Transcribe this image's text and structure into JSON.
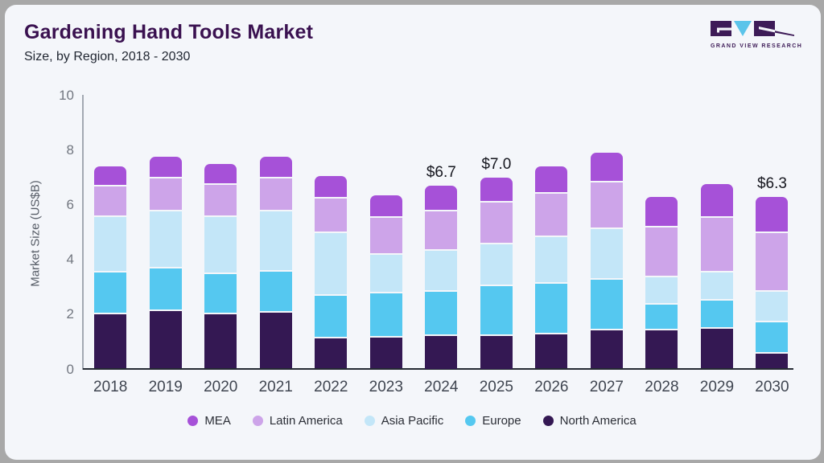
{
  "header": {
    "title": "Gardening Hand Tools Market",
    "subtitle": "Size, by Region, 2018 - 2030"
  },
  "logo": {
    "brand": "GRAND VIEW RESEARCH",
    "mark_dark_color": "#3d1b57",
    "mark_blue_color": "#5bc4ea"
  },
  "chart_data": {
    "type": "bar",
    "stacked": true,
    "title": "Gardening Hand Tools Market",
    "subtitle": "Size, by Region, 2018 - 2030",
    "xlabel": "",
    "ylabel": "Market Size (US$B)",
    "ylim": [
      0,
      10
    ],
    "yticks": [
      0,
      2,
      4,
      6,
      8,
      10
    ],
    "grid": false,
    "legend_position": "bottom",
    "categories": [
      "2018",
      "2019",
      "2020",
      "2021",
      "2022",
      "2023",
      "2024",
      "2025",
      "2026",
      "2027",
      "2028",
      "2029",
      "2030"
    ],
    "series": [
      {
        "name": "MEA",
        "color": "#a651d8",
        "values": [
          0.7,
          0.75,
          0.75,
          0.75,
          0.8,
          0.8,
          0.9,
          0.9,
          0.95,
          1.05,
          1.1,
          1.2,
          1.3
        ]
      },
      {
        "name": "Latin America",
        "color": "#cda4e9",
        "values": [
          1.1,
          1.2,
          1.15,
          1.2,
          1.25,
          1.35,
          1.45,
          1.5,
          1.6,
          1.7,
          1.8,
          2.0,
          2.15
        ]
      },
      {
        "name": "Asia Pacific",
        "color": "#c3e6f8",
        "values": [
          2.05,
          2.1,
          2.1,
          2.2,
          2.3,
          1.4,
          1.5,
          1.55,
          1.7,
          1.85,
          1.0,
          1.0,
          1.1
        ]
      },
      {
        "name": "Europe",
        "color": "#55c8f0",
        "values": [
          1.5,
          1.55,
          1.45,
          1.5,
          1.55,
          1.6,
          1.6,
          1.8,
          1.85,
          1.85,
          0.95,
          1.05,
          1.15
        ]
      },
      {
        "name": "North America",
        "color": "#341853",
        "values": [
          2.05,
          2.15,
          2.05,
          2.1,
          1.15,
          1.2,
          1.25,
          1.25,
          1.3,
          1.45,
          1.45,
          1.5,
          0.6
        ]
      }
    ],
    "totals": [
      7.4,
      7.75,
      7.5,
      7.75,
      7.05,
      6.35,
      6.7,
      7.0,
      7.4,
      7.9,
      6.3,
      6.75,
      6.3
    ],
    "annotations": [
      {
        "category": "2024",
        "label": "$6.7"
      },
      {
        "category": "2025",
        "label": "$7.0"
      },
      {
        "category": "2030",
        "label": "$6.3"
      }
    ]
  }
}
